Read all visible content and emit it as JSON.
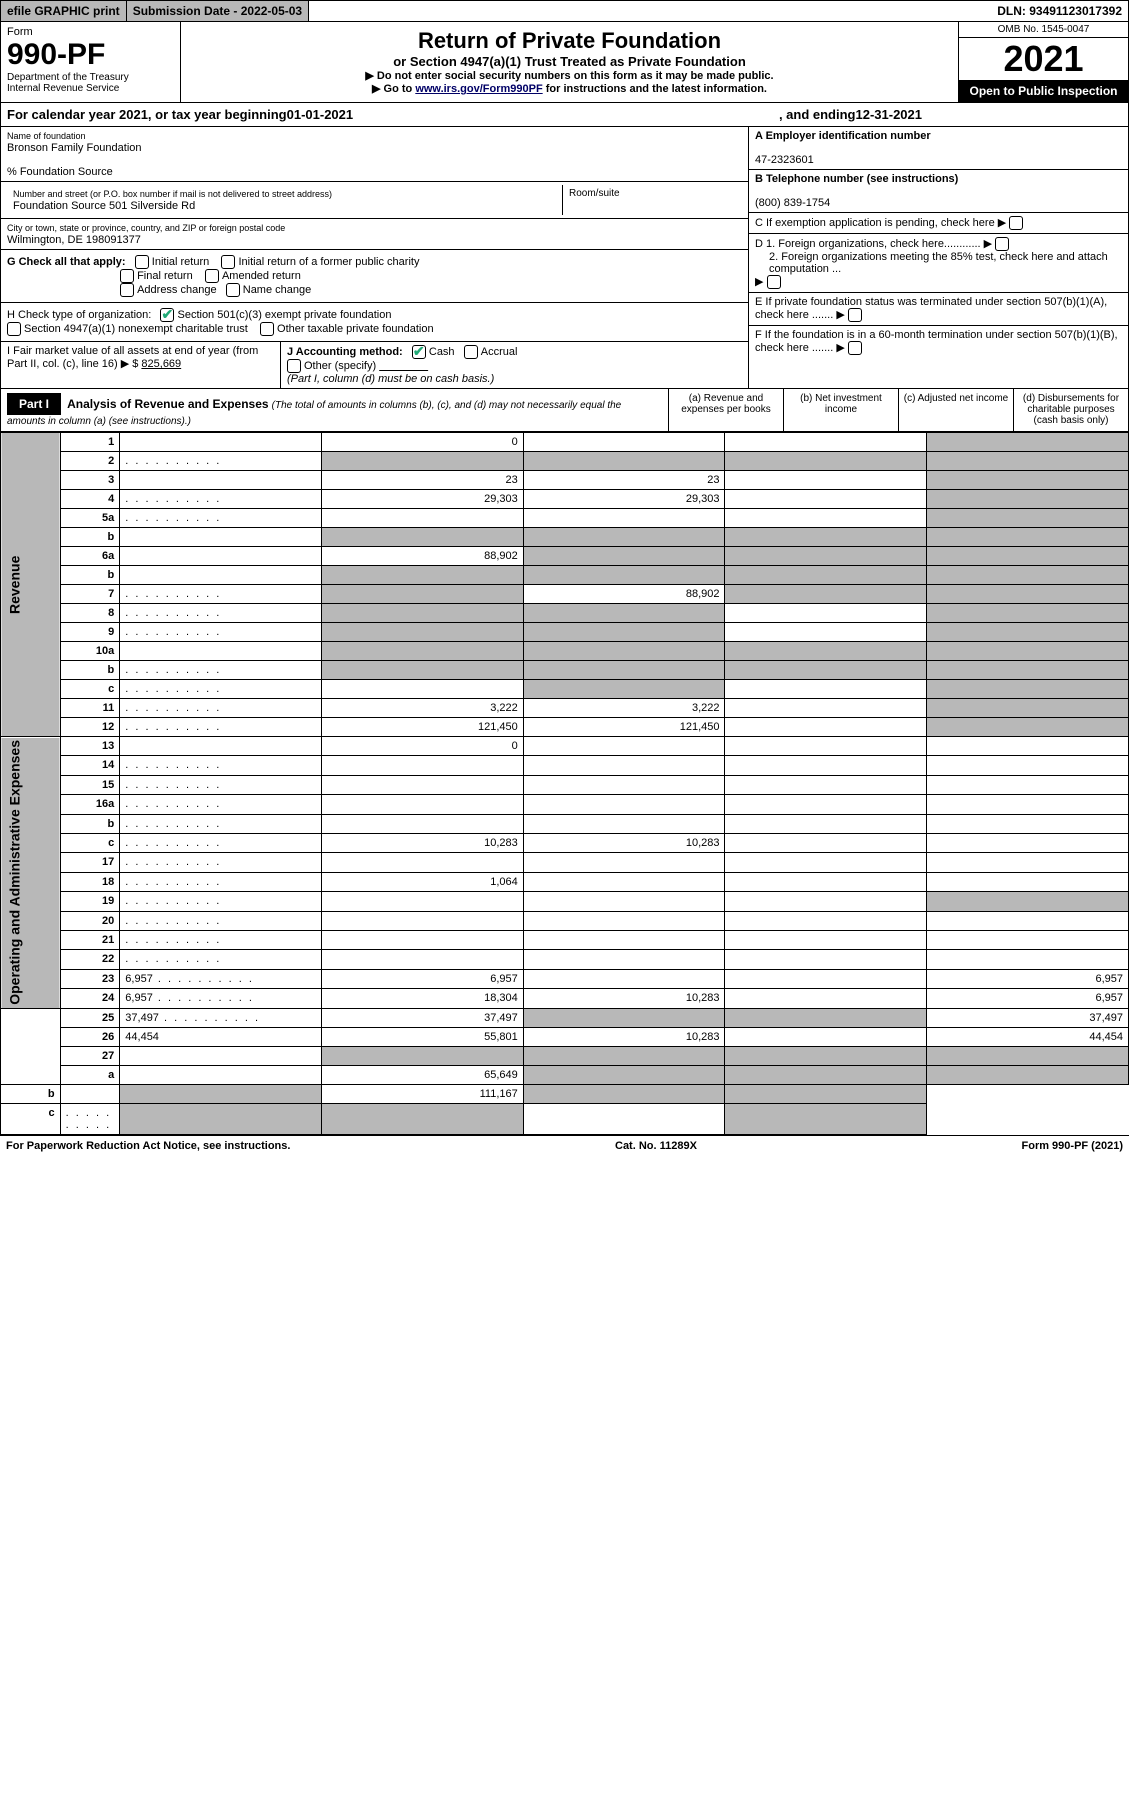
{
  "topbar": {
    "efile": "efile GRAPHIC print",
    "subdate_label": "Submission Date - ",
    "subdate": "2022-05-03",
    "dln_label": "DLN: ",
    "dln": "93491123017392"
  },
  "header": {
    "form_label": "Form",
    "form_no": "990-PF",
    "dept1": "Department of the Treasury",
    "dept2": "Internal Revenue Service",
    "title": "Return of Private Foundation",
    "subtitle": "or Section 4947(a)(1) Trust Treated as Private Foundation",
    "note1": "▶ Do not enter social security numbers on this form as it may be made public.",
    "note2_pre": "▶ Go to ",
    "note2_link": "www.irs.gov/Form990PF",
    "note2_post": " for instructions and the latest information.",
    "omb": "OMB No. 1545-0047",
    "year": "2021",
    "open": "Open to Public Inspection"
  },
  "calyear": {
    "pre": "For calendar year 2021, or tax year beginning ",
    "begin": "01-01-2021",
    "mid": " , and ending ",
    "end": "12-31-2021"
  },
  "info": {
    "name_label": "Name of foundation",
    "name": "Bronson Family Foundation",
    "care": "% Foundation Source",
    "addr_label": "Number and street (or P.O. box number if mail is not delivered to street address)",
    "addr": "Foundation Source 501 Silverside Rd",
    "room_label": "Room/suite",
    "city_label": "City or town, state or province, country, and ZIP or foreign postal code",
    "city": "Wilmington, DE  198091377",
    "ein_label": "A Employer identification number",
    "ein": "47-2323601",
    "phone_label": "B Telephone number (see instructions)",
    "phone": "(800) 839-1754",
    "c": "C If exemption application is pending, check here",
    "d1": "D 1. Foreign organizations, check here............",
    "d2": "2. Foreign organizations meeting the 85% test, check here and attach computation ...",
    "e": "E  If private foundation status was terminated under section 507(b)(1)(A), check here .......",
    "f": "F  If the foundation is in a 60-month termination under section 507(b)(1)(B), check here .......",
    "g_label": "G Check all that apply:",
    "g_opts": [
      "Initial return",
      "Initial return of a former public charity",
      "Final return",
      "Amended return",
      "Address change",
      "Name change"
    ],
    "h_label": "H Check type of organization:",
    "h1": "Section 501(c)(3) exempt private foundation",
    "h2": "Section 4947(a)(1) nonexempt charitable trust",
    "h3": "Other taxable private foundation",
    "i_label": "I Fair market value of all assets at end of year (from Part II, col. (c), line 16)",
    "i_val": "825,669",
    "j_label": "J Accounting method:",
    "j_cash": "Cash",
    "j_accrual": "Accrual",
    "j_other": "Other (specify)",
    "j_note": "(Part I, column (d) must be on cash basis.)"
  },
  "part1": {
    "label": "Part I",
    "title": "Analysis of Revenue and Expenses",
    "note": "(The total of amounts in columns (b), (c), and (d) may not necessarily equal the amounts in column (a) (see instructions).)",
    "cols": {
      "a": "(a)  Revenue and expenses per books",
      "b": "(b)  Net investment income",
      "c": "(c)  Adjusted net income",
      "d": "(d)  Disbursements for charitable purposes (cash basis only)"
    }
  },
  "side": {
    "rev": "Revenue",
    "exp": "Operating and Administrative Expenses"
  },
  "rows": [
    {
      "n": "1",
      "d": "",
      "a": "0",
      "b": "",
      "c": "",
      "cg": false,
      "dg": true
    },
    {
      "n": "2",
      "d": "",
      "dots": true,
      "a": "",
      "b": "",
      "c": "",
      "ag": true,
      "bg": true,
      "cg": true,
      "dg": true
    },
    {
      "n": "3",
      "d": "",
      "a": "23",
      "b": "23",
      "c": "",
      "dg": true
    },
    {
      "n": "4",
      "d": "",
      "dots": true,
      "a": "29,303",
      "b": "29,303",
      "c": "",
      "dg": true
    },
    {
      "n": "5a",
      "d": "",
      "dots": true,
      "a": "",
      "b": "",
      "c": "",
      "dg": true
    },
    {
      "n": "b",
      "d": "",
      "a": "",
      "b": "",
      "c": "",
      "ag": true,
      "bg": true,
      "cg": true,
      "dg": true
    },
    {
      "n": "6a",
      "d": "",
      "a": "88,902",
      "b": "",
      "c": "",
      "bg": true,
      "cg": true,
      "dg": true
    },
    {
      "n": "b",
      "d": "",
      "a": "",
      "b": "",
      "c": "",
      "ag": true,
      "bg": true,
      "cg": true,
      "dg": true
    },
    {
      "n": "7",
      "d": "",
      "dots": true,
      "a": "",
      "b": "88,902",
      "c": "",
      "ag": true,
      "cg": true,
      "dg": true
    },
    {
      "n": "8",
      "d": "",
      "dots": true,
      "a": "",
      "b": "",
      "c": "",
      "ag": true,
      "bg": true,
      "dg": true
    },
    {
      "n": "9",
      "d": "",
      "dots": true,
      "a": "",
      "b": "",
      "c": "",
      "ag": true,
      "bg": true,
      "dg": true
    },
    {
      "n": "10a",
      "d": "",
      "a": "",
      "b": "",
      "c": "",
      "ag": true,
      "bg": true,
      "cg": true,
      "dg": true
    },
    {
      "n": "b",
      "d": "",
      "dots": true,
      "a": "",
      "b": "",
      "c": "",
      "ag": true,
      "bg": true,
      "cg": true,
      "dg": true
    },
    {
      "n": "c",
      "d": "",
      "dots": true,
      "a": "",
      "b": "",
      "c": "",
      "bg": true,
      "dg": true
    },
    {
      "n": "11",
      "d": "",
      "dots": true,
      "a": "3,222",
      "b": "3,222",
      "c": "",
      "dg": true
    },
    {
      "n": "12",
      "d": "",
      "dots": true,
      "a": "121,450",
      "b": "121,450",
      "c": "",
      "dg": true
    },
    {
      "n": "13",
      "d": "",
      "a": "0",
      "b": "",
      "c": ""
    },
    {
      "n": "14",
      "d": "",
      "dots": true,
      "a": "",
      "b": "",
      "c": ""
    },
    {
      "n": "15",
      "d": "",
      "dots": true,
      "a": "",
      "b": "",
      "c": ""
    },
    {
      "n": "16a",
      "d": "",
      "dots": true,
      "a": "",
      "b": "",
      "c": ""
    },
    {
      "n": "b",
      "d": "",
      "dots": true,
      "a": "",
      "b": "",
      "c": ""
    },
    {
      "n": "c",
      "d": "",
      "dots": true,
      "a": "10,283",
      "b": "10,283",
      "c": ""
    },
    {
      "n": "17",
      "d": "",
      "dots": true,
      "a": "",
      "b": "",
      "c": ""
    },
    {
      "n": "18",
      "d": "",
      "dots": true,
      "a": "1,064",
      "b": "",
      "c": ""
    },
    {
      "n": "19",
      "d": "",
      "dots": true,
      "a": "",
      "b": "",
      "c": "",
      "dg": true
    },
    {
      "n": "20",
      "d": "",
      "dots": true,
      "a": "",
      "b": "",
      "c": ""
    },
    {
      "n": "21",
      "d": "",
      "dots": true,
      "a": "",
      "b": "",
      "c": ""
    },
    {
      "n": "22",
      "d": "",
      "dots": true,
      "a": "",
      "b": "",
      "c": ""
    },
    {
      "n": "23",
      "d": "6,957",
      "dots": true,
      "a": "6,957",
      "b": "",
      "c": ""
    },
    {
      "n": "24",
      "d": "6,957",
      "dots": true,
      "a": "18,304",
      "b": "10,283",
      "c": ""
    },
    {
      "n": "25",
      "d": "37,497",
      "dots": true,
      "a": "37,497",
      "b": "",
      "c": "",
      "bg": true,
      "cg": true
    },
    {
      "n": "26",
      "d": "44,454",
      "a": "55,801",
      "b": "10,283",
      "c": ""
    },
    {
      "n": "27",
      "d": "",
      "a": "",
      "b": "",
      "c": "",
      "ag": true,
      "bg": true,
      "cg": true,
      "dg": true
    },
    {
      "n": "a",
      "d": "",
      "a": "65,649",
      "b": "",
      "c": "",
      "bg": true,
      "cg": true,
      "dg": true
    },
    {
      "n": "b",
      "d": "",
      "a": "",
      "b": "111,167",
      "c": "",
      "ag": true,
      "cg": true,
      "dg": true
    },
    {
      "n": "c",
      "d": "",
      "dots": true,
      "a": "",
      "b": "",
      "c": "",
      "ag": true,
      "bg": true,
      "dg": true
    }
  ],
  "footer": {
    "left": "For Paperwork Reduction Act Notice, see instructions.",
    "mid": "Cat. No. 11289X",
    "right": "Form 990-PF (2021)"
  }
}
